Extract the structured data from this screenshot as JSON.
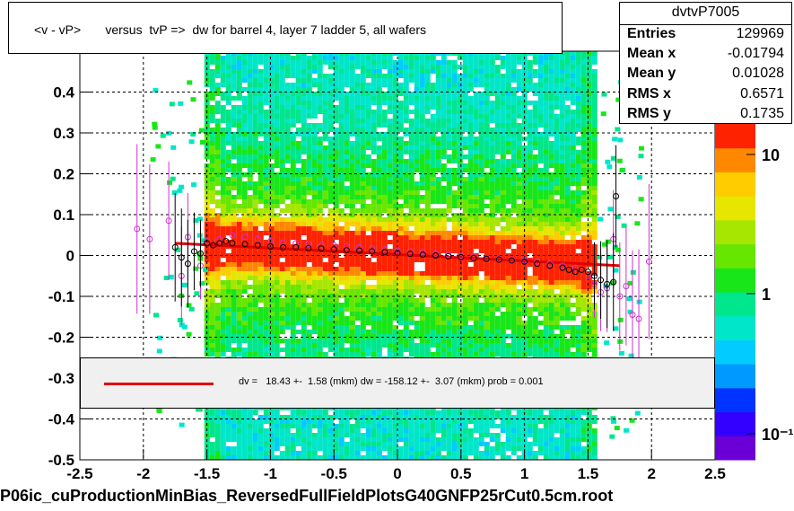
{
  "title": "<v - vP>       versus  tvP =>  dw for barrel 4, layer 7 ladder 5, all wafers",
  "stats": {
    "name": "dvtvP7005",
    "rows": [
      {
        "key": "Entries",
        "value": "129969"
      },
      {
        "key": "Mean x",
        "value": "-0.01794"
      },
      {
        "key": "Mean y",
        "value": "0.01028"
      },
      {
        "key": "RMS x",
        "value": "0.6571"
      },
      {
        "key": "RMS y",
        "value": "0.1735"
      }
    ]
  },
  "fit_text": "dv =   18.43 +-  1.58 (mkm) dw = -158.12 +-  3.07 (mkm) prob = 0.001",
  "footer": "P06ic_cuProductionMinBias_ReversedFullFieldPlotsG40GNFP25rCut0.5cm.root",
  "colors": {
    "fit_line": "#e00000",
    "points_black": "#000000",
    "points_magenta": "#cc33cc",
    "palette": [
      "#6a00d6",
      "#3300ff",
      "#0033ff",
      "#0099ff",
      "#00ccff",
      "#00e6c8",
      "#00e68c",
      "#19e619",
      "#66e600",
      "#a6e600",
      "#e6e600",
      "#ffcc00",
      "#ff8800",
      "#ff2200"
    ]
  },
  "chart_data": {
    "type": "heatmap",
    "xlim": [
      -2.5,
      2.5
    ],
    "ylim": [
      -0.5,
      0.5
    ],
    "grid": true,
    "x_ticks": [
      -2.5,
      -2,
      -1.5,
      -1,
      -0.5,
      0,
      0.5,
      1,
      1.5,
      2,
      2.5
    ],
    "x_tick_labels": [
      "-2.5",
      "-2",
      "-1.5",
      "-1",
      "-0.5",
      "0",
      "0.5",
      "1",
      "1.5",
      "2",
      "2.5"
    ],
    "y_ticks": [
      -0.5,
      -0.4,
      -0.3,
      -0.2,
      -0.1,
      0,
      0.1,
      0.2,
      0.3,
      0.4
    ],
    "y_tick_labels": [
      "-0.5",
      "-0.4",
      "-0.3",
      "-0.2",
      "-0.1",
      "0",
      "0.1",
      "0.2",
      "0.3",
      "0.4"
    ],
    "z_scale": "log",
    "z_tick_labels": [
      "10",
      "1",
      "10⁻¹"
    ],
    "fit_line": {
      "x": [
        -1.75,
        1.75
      ],
      "y": [
        0.03,
        -0.025
      ]
    },
    "profile_black": {
      "x": [
        -1.75,
        -1.7,
        -1.65,
        -1.6,
        -1.55,
        -1.5,
        -1.45,
        -1.4,
        -1.35,
        -1.3,
        -1.2,
        -1.1,
        -1.0,
        -0.9,
        -0.8,
        -0.7,
        -0.6,
        -0.5,
        -0.4,
        -0.3,
        -0.2,
        -0.1,
        0.0,
        0.1,
        0.2,
        0.3,
        0.4,
        0.5,
        0.6,
        0.7,
        0.8,
        0.9,
        1.0,
        1.1,
        1.2,
        1.3,
        1.35,
        1.4,
        1.45,
        1.5,
        1.55,
        1.6,
        1.65,
        1.7,
        1.72
      ],
      "y": [
        0.02,
        -0.005,
        -0.02,
        0.01,
        0.005,
        0.03,
        0.025,
        0.03,
        0.035,
        0.03,
        0.028,
        0.025,
        0.022,
        0.02,
        0.02,
        0.018,
        0.017,
        0.015,
        0.013,
        0.012,
        0.01,
        0.008,
        0.006,
        0.004,
        0.002,
        0.0,
        -0.002,
        -0.004,
        -0.006,
        -0.008,
        -0.01,
        -0.012,
        -0.015,
        -0.02,
        -0.025,
        -0.03,
        -0.035,
        -0.04,
        -0.035,
        -0.04,
        -0.05,
        -0.06,
        -0.07,
        -0.065,
        0.145
      ]
    },
    "profile_magenta": {
      "x": [
        -2.05,
        -1.95,
        -1.8,
        -1.7,
        -1.65,
        -1.55,
        -1.5,
        -1.4,
        -1.3,
        -1.2,
        -1.1,
        -1.0,
        -0.9,
        -0.8,
        -0.7,
        -0.6,
        -0.5,
        -0.4,
        -0.3,
        -0.2,
        -0.1,
        0.0,
        0.1,
        0.2,
        0.3,
        0.4,
        0.5,
        0.6,
        0.7,
        0.8,
        0.9,
        1.0,
        1.1,
        1.2,
        1.3,
        1.4,
        1.5,
        1.55,
        1.6,
        1.65,
        1.7,
        1.75,
        1.8,
        1.85,
        1.9,
        1.98
      ],
      "y": [
        0.065,
        0.04,
        0.085,
        -0.05,
        0.045,
        -0.025,
        0.035,
        0.04,
        0.05,
        0.045,
        0.04,
        0.035,
        0.032,
        0.03,
        0.028,
        0.025,
        0.025,
        0.022,
        0.02,
        0.018,
        0.015,
        0.012,
        0.01,
        0.008,
        0.005,
        0.002,
        0.0,
        -0.003,
        -0.006,
        -0.008,
        -0.01,
        -0.012,
        -0.015,
        -0.02,
        -0.025,
        -0.03,
        -0.05,
        -0.07,
        -0.09,
        -0.08,
        0.04,
        -0.1,
        -0.075,
        -0.145,
        -0.155,
        -0.015
      ]
    }
  }
}
